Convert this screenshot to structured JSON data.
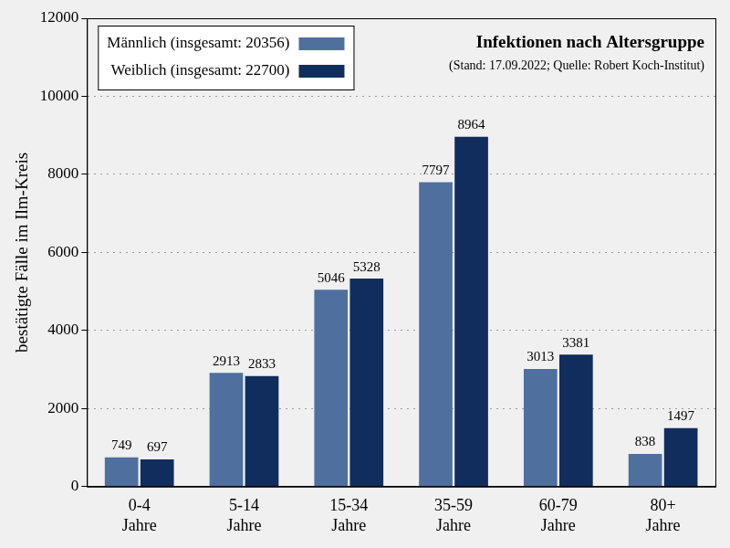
{
  "chart_data": {
    "type": "bar",
    "title": "Infektionen nach Altersgruppe",
    "subtitle": "(Stand: 17.09.2022; Quelle: Robert Koch-Institut)",
    "y_label": "bestätigte Fälle im Ilm-Kreis",
    "categories": [
      "0-4 Jahre",
      "5-14 Jahre",
      "15-34 Jahre",
      "35-59 Jahre",
      "60-79 Jahre",
      "80+ Jahre"
    ],
    "series": [
      {
        "name": "Männlich (insgesamt: 20356)",
        "color": "#4f6f9f",
        "values": [
          749,
          2913,
          5046,
          7797,
          3013,
          838
        ]
      },
      {
        "name": "Weiblich (insgesamt: 22700)",
        "color": "#102d5d",
        "values": [
          697,
          2833,
          5328,
          8964,
          3381,
          1497
        ]
      }
    ],
    "ylim": [
      0,
      12000
    ],
    "yticks": [
      0,
      2000,
      4000,
      6000,
      8000,
      10000,
      12000
    ],
    "grid": true,
    "legend": "upper left",
    "data_labels": true
  }
}
